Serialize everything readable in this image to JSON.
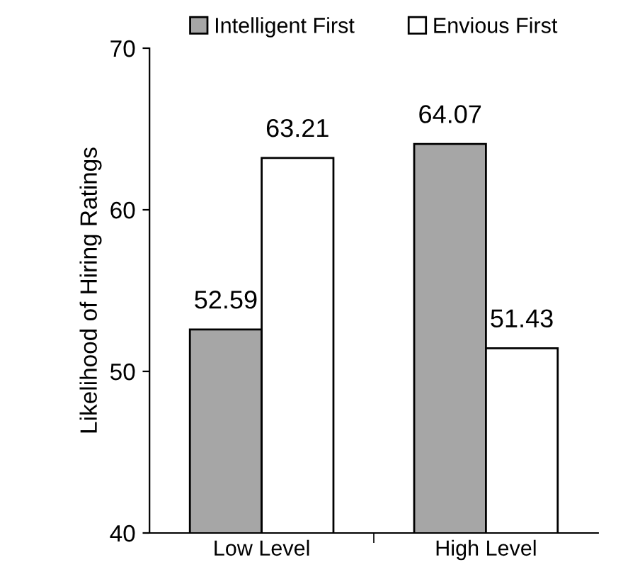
{
  "chart_data": {
    "type": "bar",
    "ylabel": "Likelihood of Hiring Ratings",
    "categories": [
      "Low Level",
      "High Level"
    ],
    "series": [
      {
        "name": "Intelligent First",
        "color": "#a6a6a6",
        "values": [
          52.59,
          64.07
        ]
      },
      {
        "name": "Envious First",
        "color": "#ffffff",
        "values": [
          63.21,
          51.43
        ]
      }
    ],
    "ylim": [
      40,
      70
    ],
    "yticks": [
      40,
      50,
      60,
      70
    ],
    "data_labels": true,
    "legend": "top",
    "grid": false
  }
}
